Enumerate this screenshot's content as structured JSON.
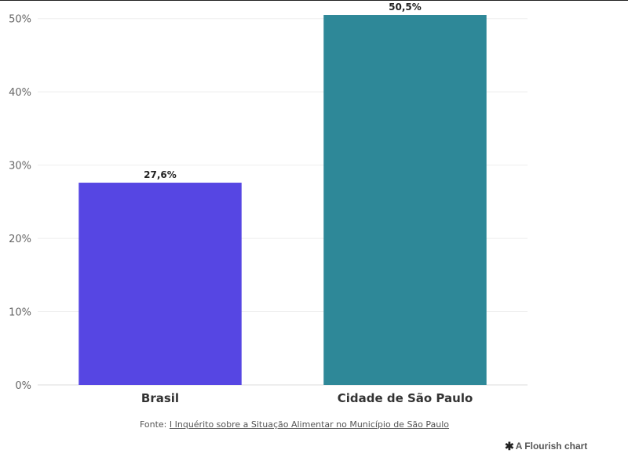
{
  "chart_data": {
    "type": "bar",
    "categories": [
      "Brasil",
      "Cidade de São Paulo"
    ],
    "values": [
      27.6,
      50.5
    ],
    "data_labels": [
      "27,6%",
      "50,5%"
    ],
    "colors": [
      "#5646e3",
      "#2e8898"
    ],
    "ylim": [
      0,
      52
    ],
    "yticks": [
      0,
      10,
      20,
      30,
      40,
      50
    ],
    "ytick_labels": [
      "0%",
      "10%",
      "20%",
      "30%",
      "40%",
      "50%"
    ],
    "grid": true,
    "title": "",
    "xlabel": "",
    "ylabel": ""
  },
  "footer": {
    "source_prefix": "Fonte: ",
    "source_link": "I Inquérito sobre a Situação Alimentar no Município de São Paulo",
    "credit_icon": "flourish-asterisk-icon",
    "credit_text": "A Flourish chart"
  }
}
